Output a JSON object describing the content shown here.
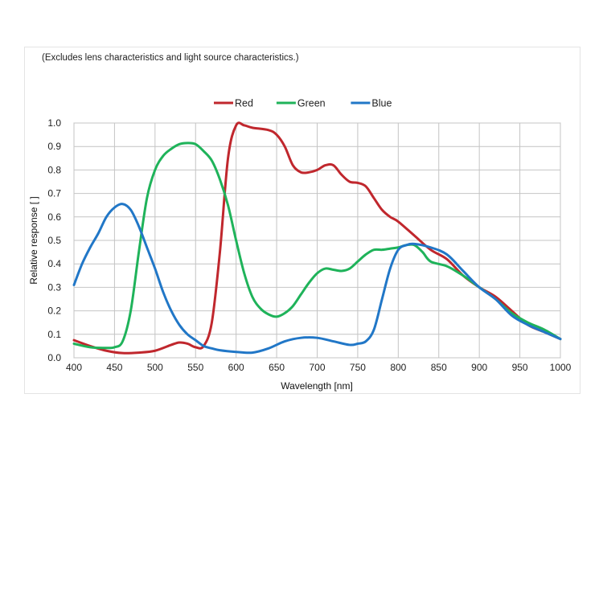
{
  "chart_data": {
    "type": "line",
    "note": "(Excludes lens characteristics and light source characteristics.)",
    "title": "",
    "xlabel": "Wavelength [nm]",
    "ylabel": "Relative response [ ]",
    "xlim": [
      400,
      1000
    ],
    "ylim": [
      0,
      1.0
    ],
    "xticks": [
      "400",
      "450",
      "500",
      "550",
      "600",
      "650",
      "700",
      "750",
      "800",
      "850",
      "900",
      "950",
      "1000"
    ],
    "yticks": [
      "0.0",
      "0.1",
      "0.2",
      "0.3",
      "0.4",
      "0.5",
      "0.6",
      "0.7",
      "0.8",
      "0.9",
      "1.0"
    ],
    "grid": true,
    "legend_position": "top-center",
    "series": [
      {
        "name": "Red",
        "color": "#c0272d",
        "x": [
          400,
          420,
          440,
          460,
          480,
          500,
          520,
          530,
          540,
          550,
          560,
          570,
          580,
          590,
          600,
          610,
          620,
          640,
          650,
          660,
          670,
          680,
          690,
          700,
          710,
          720,
          730,
          740,
          750,
          760,
          770,
          780,
          790,
          800,
          820,
          840,
          860,
          880,
          900,
          920,
          940,
          960,
          980,
          1000
        ],
        "y": [
          0.075,
          0.05,
          0.03,
          0.02,
          0.022,
          0.03,
          0.055,
          0.065,
          0.06,
          0.045,
          0.05,
          0.15,
          0.45,
          0.85,
          0.99,
          0.99,
          0.98,
          0.97,
          0.95,
          0.9,
          0.82,
          0.79,
          0.79,
          0.8,
          0.82,
          0.82,
          0.78,
          0.75,
          0.745,
          0.73,
          0.68,
          0.63,
          0.6,
          0.58,
          0.52,
          0.46,
          0.42,
          0.35,
          0.3,
          0.26,
          0.2,
          0.14,
          0.11,
          0.08
        ]
      },
      {
        "name": "Green",
        "color": "#1fb35a",
        "x": [
          400,
          420,
          440,
          450,
          460,
          470,
          480,
          490,
          500,
          510,
          520,
          530,
          540,
          550,
          560,
          570,
          580,
          590,
          600,
          610,
          620,
          630,
          640,
          650,
          660,
          670,
          680,
          690,
          700,
          710,
          720,
          730,
          740,
          750,
          760,
          770,
          780,
          790,
          800,
          810,
          820,
          830,
          840,
          860,
          880,
          900,
          920,
          940,
          960,
          980,
          1000
        ],
        "y": [
          0.06,
          0.045,
          0.042,
          0.045,
          0.07,
          0.2,
          0.45,
          0.68,
          0.8,
          0.86,
          0.89,
          0.91,
          0.915,
          0.91,
          0.88,
          0.84,
          0.76,
          0.65,
          0.5,
          0.36,
          0.26,
          0.21,
          0.185,
          0.175,
          0.19,
          0.22,
          0.27,
          0.32,
          0.36,
          0.38,
          0.375,
          0.37,
          0.38,
          0.41,
          0.44,
          0.46,
          0.46,
          0.465,
          0.47,
          0.48,
          0.48,
          0.45,
          0.41,
          0.39,
          0.35,
          0.3,
          0.25,
          0.19,
          0.15,
          0.12,
          0.08
        ]
      },
      {
        "name": "Blue",
        "color": "#2177c7",
        "x": [
          400,
          410,
          420,
          430,
          440,
          450,
          460,
          470,
          480,
          490,
          500,
          510,
          520,
          530,
          540,
          550,
          560,
          570,
          580,
          600,
          620,
          640,
          660,
          680,
          700,
          720,
          740,
          750,
          760,
          770,
          780,
          790,
          800,
          810,
          820,
          840,
          860,
          880,
          900,
          920,
          940,
          960,
          980,
          1000
        ],
        "y": [
          0.31,
          0.4,
          0.47,
          0.53,
          0.6,
          0.64,
          0.655,
          0.63,
          0.56,
          0.47,
          0.38,
          0.28,
          0.2,
          0.14,
          0.1,
          0.075,
          0.05,
          0.04,
          0.032,
          0.025,
          0.022,
          0.04,
          0.07,
          0.085,
          0.085,
          0.07,
          0.055,
          0.06,
          0.07,
          0.12,
          0.25,
          0.38,
          0.46,
          0.48,
          0.485,
          0.47,
          0.44,
          0.37,
          0.3,
          0.25,
          0.18,
          0.14,
          0.11,
          0.08
        ]
      }
    ]
  }
}
